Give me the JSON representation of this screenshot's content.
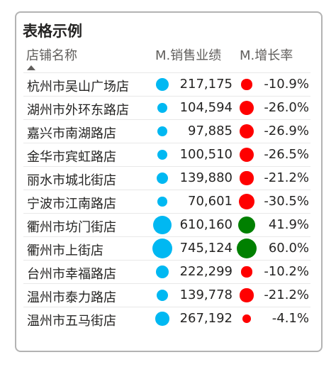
{
  "visual": {
    "title": "表格示例",
    "columns": {
      "store": "店铺名称",
      "sales": "M.销售业绩",
      "growth": "M.增长率"
    },
    "sort": "ascending",
    "colors": {
      "sales_bubble": "#00b8f2",
      "growth_negative": "#ff0000",
      "growth_positive": "#008000"
    },
    "rows": [
      {
        "store": "杭州市吴山广场店",
        "sales": "217,175",
        "sales_value": 217175,
        "growth": "-10.9%",
        "growth_value": -10.9
      },
      {
        "store": "湖州市外环东路店",
        "sales": "104,594",
        "sales_value": 104594,
        "growth": "-26.0%",
        "growth_value": -26.0
      },
      {
        "store": "嘉兴市南湖路店",
        "sales": "97,885",
        "sales_value": 97885,
        "growth": "-26.9%",
        "growth_value": -26.9
      },
      {
        "store": "金华市宾虹路店",
        "sales": "100,510",
        "sales_value": 100510,
        "growth": "-26.5%",
        "growth_value": -26.5
      },
      {
        "store": "丽水市城北街店",
        "sales": "139,880",
        "sales_value": 139880,
        "growth": "-21.2%",
        "growth_value": -21.2
      },
      {
        "store": "宁波市江南路店",
        "sales": "70,601",
        "sales_value": 70601,
        "growth": "-30.5%",
        "growth_value": -30.5
      },
      {
        "store": "衢州市坊门街店",
        "sales": "610,160",
        "sales_value": 610160,
        "growth": "41.9%",
        "growth_value": 41.9
      },
      {
        "store": "衢州市上街店",
        "sales": "745,124",
        "sales_value": 745124,
        "growth": "60.0%",
        "growth_value": 60.0
      },
      {
        "store": "台州市幸福路店",
        "sales": "222,299",
        "sales_value": 222299,
        "growth": "-10.2%",
        "growth_value": -10.2
      },
      {
        "store": "温州市泰力路店",
        "sales": "139,778",
        "sales_value": 139778,
        "growth": "-21.2%",
        "growth_value": -21.2
      },
      {
        "store": "温州市五马街店",
        "sales": "267,192",
        "sales_value": 267192,
        "growth": "-4.1%",
        "growth_value": -4.1
      }
    ]
  }
}
